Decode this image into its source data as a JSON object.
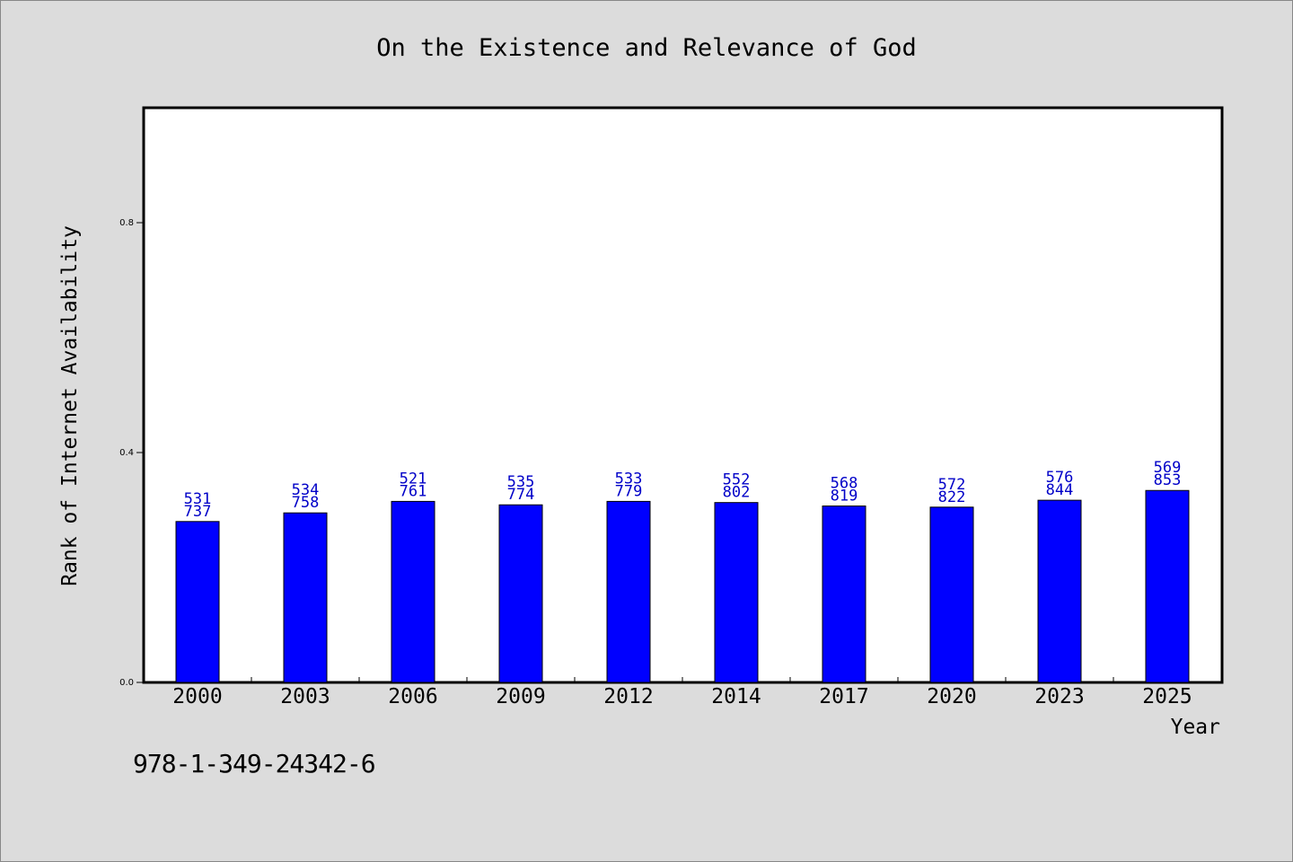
{
  "chart_data": {
    "type": "bar",
    "title": "On the Existence and Relevance of God",
    "xlabel": "Year",
    "ylabel": "Rank of Internet Availability",
    "categories": [
      "2000",
      "2003",
      "2006",
      "2009",
      "2012",
      "2014",
      "2017",
      "2020",
      "2023",
      "2025"
    ],
    "values": [
      0.28,
      0.295,
      0.315,
      0.309,
      0.315,
      0.313,
      0.307,
      0.305,
      0.317,
      0.334
    ],
    "data_labels_top": [
      "531",
      "534",
      "521",
      "535",
      "533",
      "552",
      "568",
      "572",
      "576",
      "569"
    ],
    "data_labels_bottom": [
      "737",
      "758",
      "761",
      "774",
      "779",
      "802",
      "819",
      "822",
      "844",
      "853"
    ],
    "yticks": [
      "0.0",
      "0.4",
      "0.8"
    ],
    "ytick_values": [
      0.0,
      0.4,
      0.8
    ],
    "ylim": [
      0,
      1.0
    ],
    "grid": false,
    "bar_color": "#0000ff",
    "label_color": "#0000c8"
  },
  "footer": {
    "code": "978-1-349-24342-6"
  }
}
